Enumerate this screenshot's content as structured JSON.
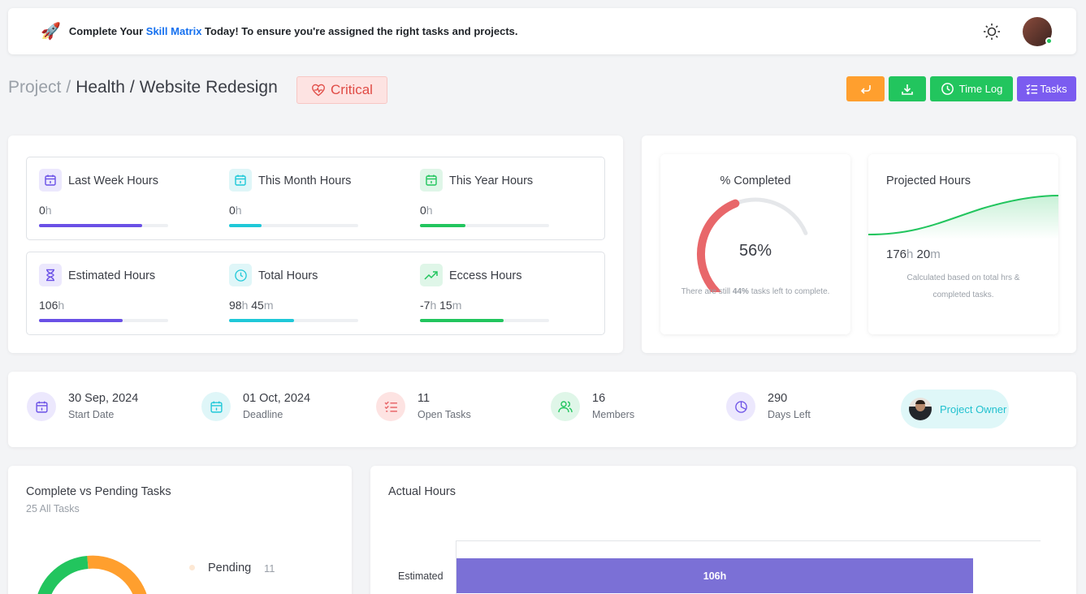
{
  "banner": {
    "prefix": "Complete Your ",
    "highlight": "Skill Matrix",
    "suffix": " Today! To ensure you're assigned the right tasks and projects."
  },
  "breadcrumb": {
    "root": "Project",
    "sep1": "/",
    "section": "Health",
    "sep2": "/",
    "page": "Website Redesign"
  },
  "priority": {
    "label": "Critical",
    "color": "#e04b45"
  },
  "actions": {
    "timelog": "Time Log",
    "tasks": "Tasks"
  },
  "hours": {
    "last_week": {
      "label": "Last Week Hours",
      "num": "0",
      "unit": "h",
      "progress": 0.8,
      "color": "#6a50e6",
      "icon": "calendar-icon"
    },
    "this_month": {
      "label": "This Month Hours",
      "num": "0",
      "unit": "h",
      "progress": 0.25,
      "color": "#1fc8d8",
      "icon": "calendar-icon"
    },
    "this_year": {
      "label": "This Year Hours",
      "num": "0",
      "unit": "h",
      "progress": 0.35,
      "color": "#22c55e",
      "icon": "calendar-icon"
    },
    "estimated": {
      "label": "Estimated Hours",
      "num": "106",
      "unit": "h",
      "progress": 0.65,
      "color": "#6a50e6",
      "icon": "hourglass-icon"
    },
    "total": {
      "label": "Total Hours",
      "num1": "98",
      "unit1": "h",
      "num2": " 45",
      "unit2": "m",
      "progress": 0.5,
      "color": "#1fc8d8",
      "icon": "clock-icon"
    },
    "excess": {
      "label": "Eccess Hours",
      "num1": "-7",
      "unit1": "h",
      "num2": " 15",
      "unit2": "m",
      "progress": 0.65,
      "color": "#22c55e",
      "icon": "trending-up-icon"
    }
  },
  "completed": {
    "title": "% Completed",
    "percent_text": "56%",
    "percent": 56,
    "note_prefix": "There are still ",
    "note_bold": "44%",
    "note_suffix": " tasks left to complete."
  },
  "projected": {
    "title": "Projected Hours",
    "num1": "176",
    "unit1": "h",
    "num2": " 20",
    "unit2": "m",
    "note_line1": "Calculated based on total hrs &",
    "note_line2": "completed tasks."
  },
  "info": {
    "start": {
      "value": "30 Sep, 2024",
      "label": "Start Date",
      "icon": "calendar-icon"
    },
    "deadline": {
      "value": "01 Oct, 2024",
      "label": "Deadline",
      "icon": "calendar-icon"
    },
    "open_tasks": {
      "value": "11",
      "label": "Open Tasks",
      "icon": "checklist-icon"
    },
    "members": {
      "value": "16",
      "label": "Members",
      "icon": "users-icon"
    },
    "days_left": {
      "value": "290",
      "label": "Days Left",
      "icon": "pie-clock-icon"
    },
    "owner": {
      "label": "Project Owner"
    }
  },
  "tasks_chart": {
    "title": "Complete vs Pending Tasks",
    "subtitle": "25 All Tasks",
    "legend_label": "Pending",
    "legend_value": "11"
  },
  "actual_hours": {
    "title": "Actual Hours",
    "bar_category": "Estimated",
    "bar_label": "106h",
    "bar_value": 106
  },
  "chart_data": {
    "type": "bar",
    "title": "Actual Hours",
    "categories": [
      "Estimated"
    ],
    "values": [
      106
    ]
  }
}
